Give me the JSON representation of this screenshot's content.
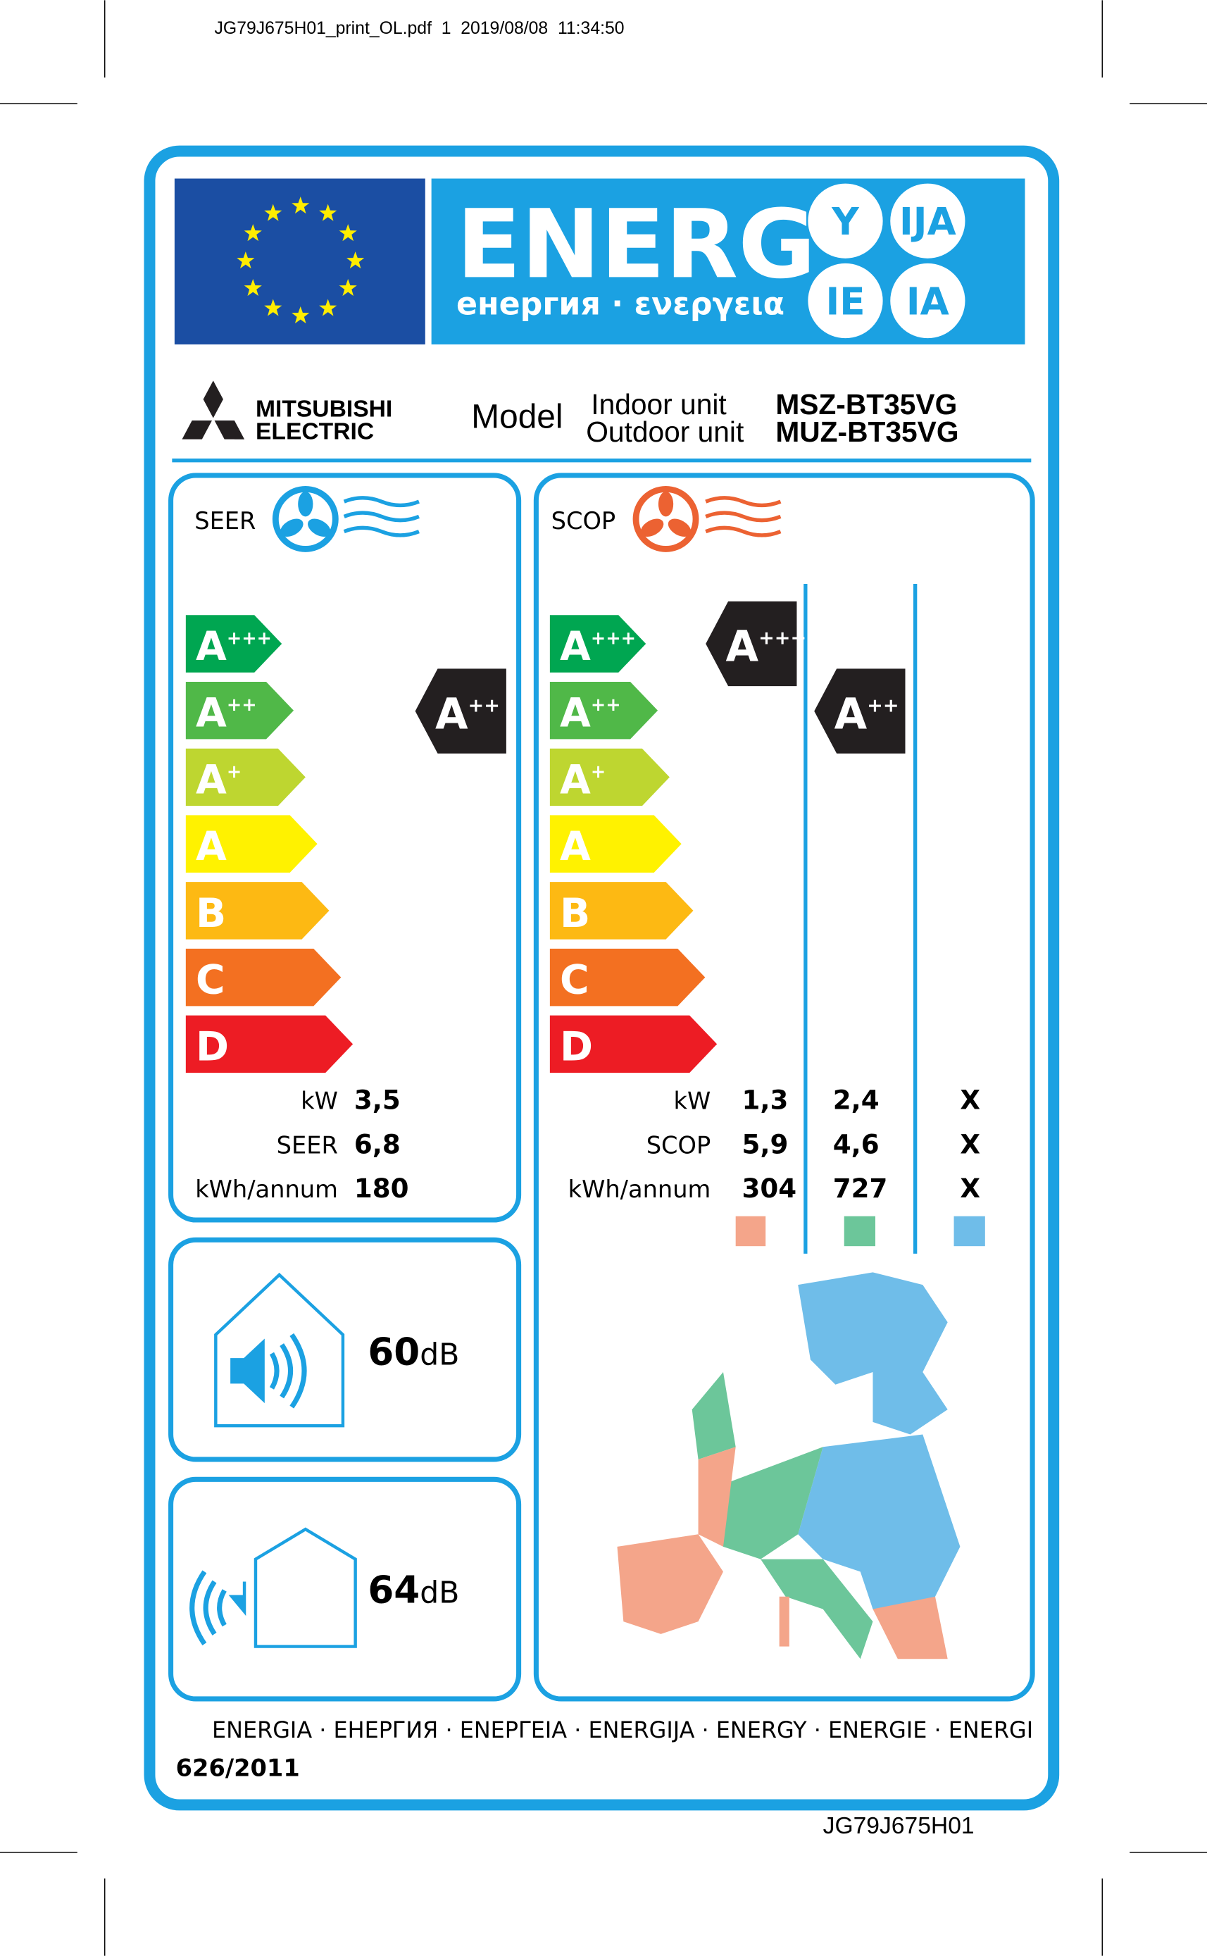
{
  "print_header": "JG79J675H01_print_OL.pdf  1  2019/08/08  11:34:50",
  "header": {
    "title": "ENERG",
    "suffixes": [
      "Y",
      "IJA",
      "IE",
      "IA"
    ],
    "subtitle": "енергия · ενεργεια"
  },
  "brand": {
    "line1": "MITSUBISHI",
    "line2": "ELECTRIC"
  },
  "model": {
    "label": "Model",
    "indoor_label": "Indoor unit",
    "outdoor_label": "Outdoor unit",
    "indoor": "MSZ-BT35VG",
    "outdoor": "MUZ-BT35VG"
  },
  "cooling": {
    "label": "SEER",
    "classes": [
      {
        "letter": "A",
        "sup": "+++"
      },
      {
        "letter": "A",
        "sup": "++"
      },
      {
        "letter": "A",
        "sup": "+"
      },
      {
        "letter": "A"
      },
      {
        "letter": "B"
      },
      {
        "letter": "C"
      },
      {
        "letter": "D"
      }
    ],
    "rating": {
      "letter": "A",
      "sup": "++"
    },
    "rows": [
      [
        "kW",
        "3,5"
      ],
      [
        "SEER",
        "6,8"
      ],
      [
        "kWh/annum",
        "180"
      ]
    ]
  },
  "heating": {
    "label": "SCOP",
    "classes": [
      {
        "letter": "A",
        "sup": "+++"
      },
      {
        "letter": "A",
        "sup": "++"
      },
      {
        "letter": "A",
        "sup": "+"
      },
      {
        "letter": "A"
      },
      {
        "letter": "B"
      },
      {
        "letter": "C"
      },
      {
        "letter": "D"
      }
    ],
    "ratings": [
      {
        "letter": "A",
        "sup": "+++"
      },
      {
        "letter": "A",
        "sup": "++"
      }
    ],
    "rows": [
      [
        "kW",
        "1,3",
        "2,4",
        "X"
      ],
      [
        "SCOP",
        "5,9",
        "4,6",
        "X"
      ],
      [
        "kWh/annum",
        "304",
        "727",
        "X"
      ]
    ]
  },
  "noise": {
    "indoor": {
      "value": "60",
      "unit": "dB"
    },
    "outdoor": {
      "value": "64",
      "unit": "dB"
    }
  },
  "footer": {
    "languages": "ENERGIA · ЕНЕРГИЯ · ΕΝΕΡΓΕΙΑ · ENERGIJA · ENERGY · ENERGIE · ENERGI",
    "regulation": "626/2011",
    "code": "JG79J675H01"
  }
}
